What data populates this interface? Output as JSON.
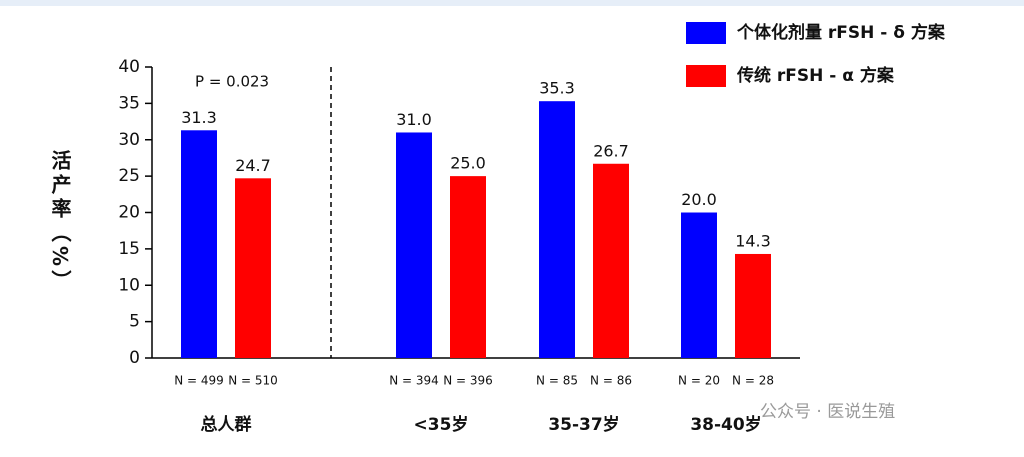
{
  "chart_data": {
    "type": "bar",
    "ylabel": "活产率（%）",
    "categories": [
      "总人群",
      "<35岁",
      "35-37岁",
      "38-40岁"
    ],
    "series": [
      {
        "name": "个体化剂量 rFSH - δ 方案",
        "color": "#0000ff",
        "values": [
          31.3,
          31.0,
          35.3,
          20.0
        ],
        "value_labels": [
          "31.3",
          "31.0",
          "35.3",
          "20.0"
        ],
        "n_labels": [
          "N = 499",
          "N = 394",
          "N = 85",
          "N = 20"
        ]
      },
      {
        "name": "传统 rFSH - α 方案",
        "color": "#ff0000",
        "values": [
          24.7,
          25.0,
          26.7,
          14.3
        ],
        "value_labels": [
          "24.7",
          "25.0",
          "26.7",
          "14.3"
        ],
        "n_labels": [
          "N = 510",
          "N = 396",
          "N = 86",
          "N = 28"
        ]
      }
    ],
    "annotation": "P = 0.023",
    "ylim": [
      0,
      40
    ],
    "yticks": [
      0,
      5,
      10,
      15,
      20,
      25,
      30,
      35,
      40
    ],
    "legend": "top-right",
    "watermark": "公众号 · 医说生殖"
  }
}
